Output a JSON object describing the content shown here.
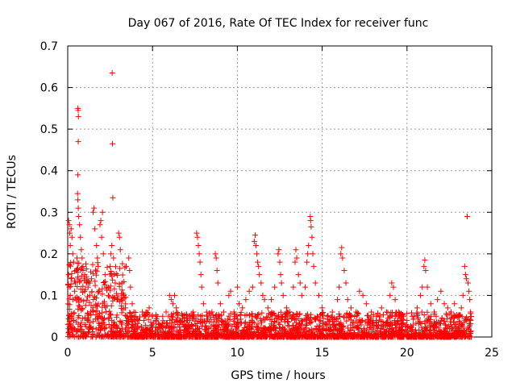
{
  "chart_data": {
    "type": "scatter",
    "title": "Day 067 of 2016, Rate Of TEC Index for receiver func",
    "xlabel": "GPS time / hours",
    "ylabel": "ROTI / TECUs",
    "xlim": [
      0,
      25
    ],
    "ylim": [
      0,
      0.7
    ],
    "xticks": [
      0,
      5,
      10,
      15,
      20,
      25
    ],
    "xtick_labels": [
      "0",
      "5",
      "10",
      "15",
      "20",
      "25"
    ],
    "yticks": [
      0,
      0.1,
      0.2,
      0.3,
      0.4,
      0.5,
      0.6,
      0.7
    ],
    "ytick_labels": [
      "0",
      "0.1",
      "0.2",
      "0.3",
      "0.4",
      "0.5",
      "0.6",
      "0.7"
    ],
    "grid": true,
    "marker": "+",
    "color": "#ff0000",
    "series": [
      {
        "name": "ROTI",
        "points": [
          [
            0.05,
            0.28
          ],
          [
            0.1,
            0.27
          ],
          [
            0.12,
            0.25
          ],
          [
            0.15,
            0.22
          ],
          [
            0.2,
            0.26
          ],
          [
            0.25,
            0.24
          ],
          [
            0.3,
            0.2
          ],
          [
            0.35,
            0.18
          ],
          [
            0.05,
            0.15
          ],
          [
            0.1,
            0.12
          ],
          [
            0.15,
            0.1
          ],
          [
            0.2,
            0.14
          ],
          [
            0.3,
            0.09
          ],
          [
            0.4,
            0.11
          ],
          [
            0.45,
            0.13
          ],
          [
            0.5,
            0.16
          ],
          [
            0.55,
            0.19
          ],
          [
            0.6,
            0.55
          ],
          [
            0.62,
            0.545
          ],
          [
            0.63,
            0.53
          ],
          [
            0.62,
            0.47
          ],
          [
            0.6,
            0.39
          ],
          [
            0.58,
            0.345
          ],
          [
            0.6,
            0.33
          ],
          [
            0.62,
            0.31
          ],
          [
            0.65,
            0.29
          ],
          [
            0.7,
            0.27
          ],
          [
            0.75,
            0.24
          ],
          [
            0.8,
            0.21
          ],
          [
            0.85,
            0.19
          ],
          [
            0.9,
            0.17
          ],
          [
            1.0,
            0.15
          ],
          [
            1.1,
            0.13
          ],
          [
            1.2,
            0.12
          ],
          [
            1.3,
            0.1
          ],
          [
            1.4,
            0.14
          ],
          [
            1.5,
            0.3
          ],
          [
            1.55,
            0.31
          ],
          [
            1.6,
            0.26
          ],
          [
            1.7,
            0.22
          ],
          [
            1.75,
            0.19
          ],
          [
            1.8,
            0.17
          ],
          [
            1.9,
            0.27
          ],
          [
            1.95,
            0.28
          ],
          [
            2.0,
            0.24
          ],
          [
            2.05,
            0.3
          ],
          [
            2.1,
            0.2
          ],
          [
            2.2,
            0.15
          ],
          [
            2.3,
            0.12
          ],
          [
            2.4,
            0.1
          ],
          [
            2.5,
            0.17
          ],
          [
            2.55,
            0.2
          ],
          [
            2.6,
            0.22
          ],
          [
            2.62,
            0.635
          ],
          [
            2.64,
            0.465
          ],
          [
            2.66,
            0.335
          ],
          [
            2.7,
            0.19
          ],
          [
            2.8,
            0.13
          ],
          [
            2.9,
            0.09
          ],
          [
            3.0,
            0.25
          ],
          [
            3.05,
            0.24
          ],
          [
            3.1,
            0.21
          ],
          [
            3.2,
            0.13
          ],
          [
            3.3,
            0.1
          ],
          [
            3.4,
            0.07
          ],
          [
            3.5,
            0.05
          ],
          [
            3.6,
            0.19
          ],
          [
            3.65,
            0.16
          ],
          [
            3.7,
            0.12
          ],
          [
            3.8,
            0.08
          ],
          [
            3.9,
            0.06
          ],
          [
            4.0,
            0.05
          ],
          [
            4.2,
            0.04
          ],
          [
            4.4,
            0.06
          ],
          [
            4.6,
            0.05
          ],
          [
            4.8,
            0.07
          ],
          [
            5.0,
            0.05
          ],
          [
            5.2,
            0.04
          ],
          [
            5.4,
            0.03
          ],
          [
            5.6,
            0.05
          ],
          [
            5.8,
            0.06
          ],
          [
            6.0,
            0.1
          ],
          [
            6.1,
            0.09
          ],
          [
            6.2,
            0.08
          ],
          [
            6.3,
            0.1
          ],
          [
            6.4,
            0.07
          ],
          [
            6.6,
            0.04
          ],
          [
            6.8,
            0.03
          ],
          [
            7.0,
            0.04
          ],
          [
            7.2,
            0.05
          ],
          [
            7.4,
            0.06
          ],
          [
            7.6,
            0.25
          ],
          [
            7.65,
            0.24
          ],
          [
            7.7,
            0.22
          ],
          [
            7.75,
            0.2
          ],
          [
            7.8,
            0.18
          ],
          [
            7.85,
            0.15
          ],
          [
            7.9,
            0.12
          ],
          [
            8.0,
            0.08
          ],
          [
            8.2,
            0.05
          ],
          [
            8.5,
            0.06
          ],
          [
            8.7,
            0.2
          ],
          [
            8.75,
            0.19
          ],
          [
            8.8,
            0.16
          ],
          [
            8.85,
            0.13
          ],
          [
            9.0,
            0.08
          ],
          [
            9.2,
            0.06
          ],
          [
            9.5,
            0.1
          ],
          [
            9.6,
            0.11
          ],
          [
            9.8,
            0.06
          ],
          [
            10.0,
            0.12
          ],
          [
            10.1,
            0.08
          ],
          [
            10.3,
            0.07
          ],
          [
            10.5,
            0.09
          ],
          [
            10.7,
            0.11
          ],
          [
            10.9,
            0.12
          ],
          [
            11.0,
            0.23
          ],
          [
            11.05,
            0.245
          ],
          [
            11.1,
            0.22
          ],
          [
            11.15,
            0.2
          ],
          [
            11.2,
            0.18
          ],
          [
            11.25,
            0.17
          ],
          [
            11.3,
            0.15
          ],
          [
            11.4,
            0.13
          ],
          [
            11.5,
            0.1
          ],
          [
            11.6,
            0.09
          ],
          [
            11.8,
            0.07
          ],
          [
            12.0,
            0.09
          ],
          [
            12.2,
            0.12
          ],
          [
            12.4,
            0.2
          ],
          [
            12.45,
            0.21
          ],
          [
            12.5,
            0.18
          ],
          [
            12.55,
            0.15
          ],
          [
            12.6,
            0.13
          ],
          [
            12.7,
            0.1
          ],
          [
            12.9,
            0.07
          ],
          [
            13.1,
            0.06
          ],
          [
            13.3,
            0.12
          ],
          [
            13.4,
            0.18
          ],
          [
            13.45,
            0.21
          ],
          [
            13.5,
            0.19
          ],
          [
            13.6,
            0.15
          ],
          [
            13.7,
            0.13
          ],
          [
            13.8,
            0.1
          ],
          [
            14.0,
            0.12
          ],
          [
            14.1,
            0.18
          ],
          [
            14.15,
            0.2
          ],
          [
            14.2,
            0.22
          ],
          [
            14.3,
            0.29
          ],
          [
            14.32,
            0.28
          ],
          [
            14.35,
            0.265
          ],
          [
            14.4,
            0.24
          ],
          [
            14.45,
            0.2
          ],
          [
            14.5,
            0.17
          ],
          [
            14.6,
            0.13
          ],
          [
            14.8,
            0.1
          ],
          [
            15.0,
            0.07
          ],
          [
            15.3,
            0.05
          ],
          [
            15.6,
            0.06
          ],
          [
            15.9,
            0.09
          ],
          [
            16.0,
            0.12
          ],
          [
            16.1,
            0.2
          ],
          [
            16.15,
            0.215
          ],
          [
            16.2,
            0.19
          ],
          [
            16.3,
            0.16
          ],
          [
            16.4,
            0.13
          ],
          [
            16.5,
            0.09
          ],
          [
            16.7,
            0.07
          ],
          [
            17.0,
            0.06
          ],
          [
            17.2,
            0.11
          ],
          [
            17.4,
            0.1
          ],
          [
            17.6,
            0.08
          ],
          [
            17.9,
            0.06
          ],
          [
            18.2,
            0.05
          ],
          [
            18.5,
            0.07
          ],
          [
            18.8,
            0.06
          ],
          [
            19.0,
            0.1
          ],
          [
            19.1,
            0.13
          ],
          [
            19.2,
            0.12
          ],
          [
            19.3,
            0.09
          ],
          [
            19.5,
            0.06
          ],
          [
            19.8,
            0.05
          ],
          [
            20.0,
            0.04
          ],
          [
            20.3,
            0.05
          ],
          [
            20.6,
            0.07
          ],
          [
            20.8,
            0.1
          ],
          [
            20.9,
            0.12
          ],
          [
            21.0,
            0.17
          ],
          [
            21.05,
            0.185
          ],
          [
            21.1,
            0.16
          ],
          [
            21.2,
            0.12
          ],
          [
            21.4,
            0.08
          ],
          [
            21.6,
            0.06
          ],
          [
            21.8,
            0.09
          ],
          [
            22.0,
            0.11
          ],
          [
            22.2,
            0.08
          ],
          [
            22.4,
            0.07
          ],
          [
            22.6,
            0.06
          ],
          [
            22.8,
            0.08
          ],
          [
            23.0,
            0.05
          ],
          [
            23.2,
            0.07
          ],
          [
            23.3,
            0.1
          ],
          [
            23.4,
            0.17
          ],
          [
            23.45,
            0.15
          ],
          [
            23.5,
            0.14
          ],
          [
            23.55,
            0.29
          ],
          [
            23.6,
            0.13
          ],
          [
            23.65,
            0.11
          ],
          [
            23.7,
            0.09
          ],
          [
            23.75,
            0.06
          ]
        ]
      }
    ]
  }
}
